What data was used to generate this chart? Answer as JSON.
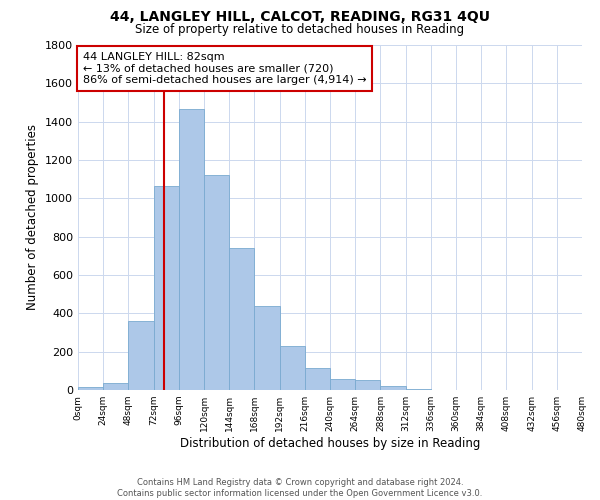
{
  "title": "44, LANGLEY HILL, CALCOT, READING, RG31 4QU",
  "subtitle": "Size of property relative to detached houses in Reading",
  "xlabel": "Distribution of detached houses by size in Reading",
  "ylabel": "Number of detached properties",
  "bar_color": "#adc8e8",
  "bar_edge_color": "#7aaad0",
  "background_color": "#ffffff",
  "grid_color": "#ccd8ee",
  "bin_edges": [
    0,
    24,
    48,
    72,
    96,
    120,
    144,
    168,
    192,
    216,
    240,
    264,
    288,
    312,
    336,
    360,
    384,
    408,
    432,
    456,
    480
  ],
  "bar_values": [
    15,
    35,
    360,
    1065,
    1465,
    1120,
    740,
    440,
    230,
    115,
    55,
    50,
    20,
    5,
    2,
    2,
    1,
    0,
    0,
    0
  ],
  "property_value": 82,
  "annotation_text_line1": "44 LANGLEY HILL: 82sqm",
  "annotation_text_line2": "← 13% of detached houses are smaller (720)",
  "annotation_text_line3": "86% of semi-detached houses are larger (4,914) →",
  "annotation_box_color": "#ffffff",
  "annotation_box_edge_color": "#cc0000",
  "annotation_line_color": "#cc0000",
  "tick_labels": [
    "0sqm",
    "24sqm",
    "48sqm",
    "72sqm",
    "96sqm",
    "120sqm",
    "144sqm",
    "168sqm",
    "192sqm",
    "216sqm",
    "240sqm",
    "264sqm",
    "288sqm",
    "312sqm",
    "336sqm",
    "360sqm",
    "384sqm",
    "408sqm",
    "432sqm",
    "456sqm",
    "480sqm"
  ],
  "ylim": [
    0,
    1800
  ],
  "yticks": [
    0,
    200,
    400,
    600,
    800,
    1000,
    1200,
    1400,
    1600,
    1800
  ],
  "footer_line1": "Contains HM Land Registry data © Crown copyright and database right 2024.",
  "footer_line2": "Contains public sector information licensed under the Open Government Licence v3.0."
}
